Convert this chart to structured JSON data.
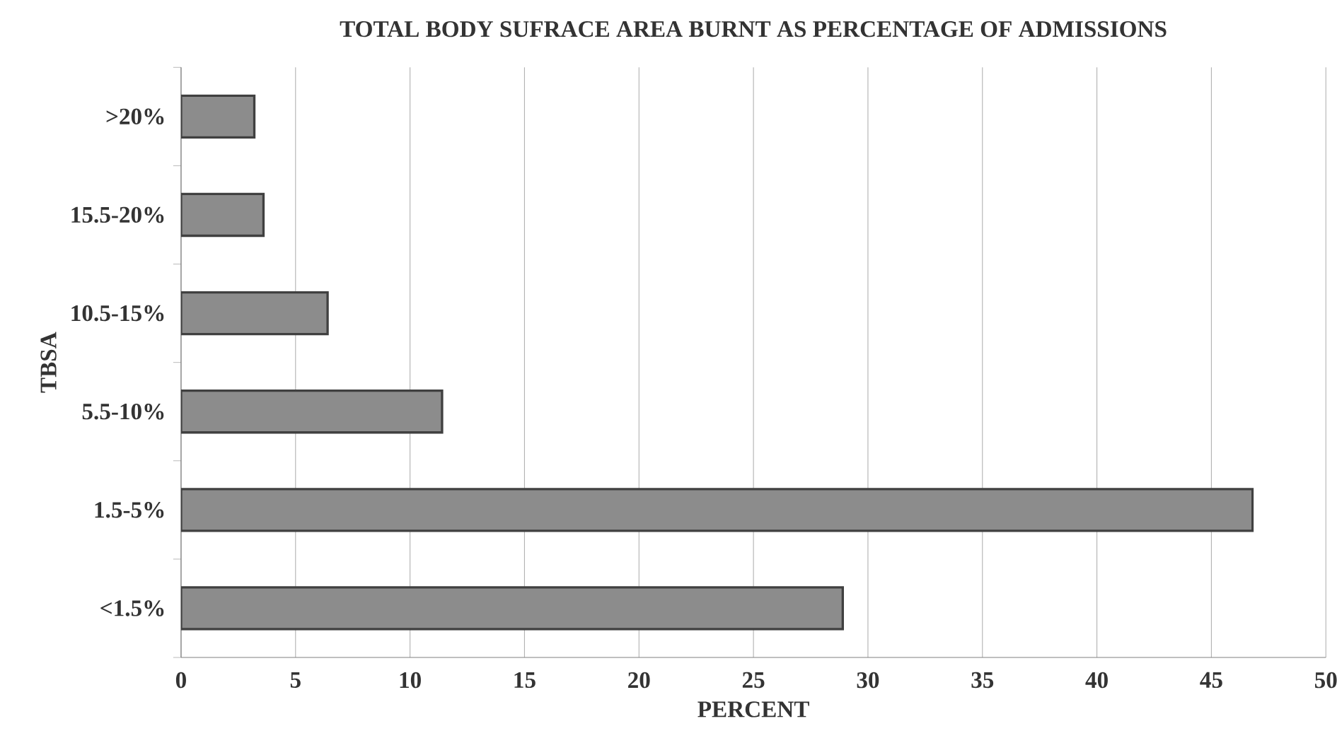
{
  "chart_data": {
    "type": "bar",
    "orientation": "horizontal",
    "title": "TOTAL BODY SUFRACE AREA BURNT AS PERCENTAGE OF ADMISSIONS",
    "xlabel": "PERCENT",
    "ylabel": "TBSA",
    "categories": [
      ">20%",
      "15.5-20%",
      "10.5-15%",
      "5.5-10%",
      "1.5-5%",
      "<1.5%"
    ],
    "values": [
      3.2,
      3.6,
      6.4,
      11.4,
      46.8,
      28.9
    ],
    "color": "#8c8c8c",
    "xlim": [
      0,
      50
    ],
    "xticks": [
      0,
      5,
      10,
      15,
      20,
      25,
      30,
      35,
      40,
      45,
      50
    ],
    "grid": "x"
  }
}
